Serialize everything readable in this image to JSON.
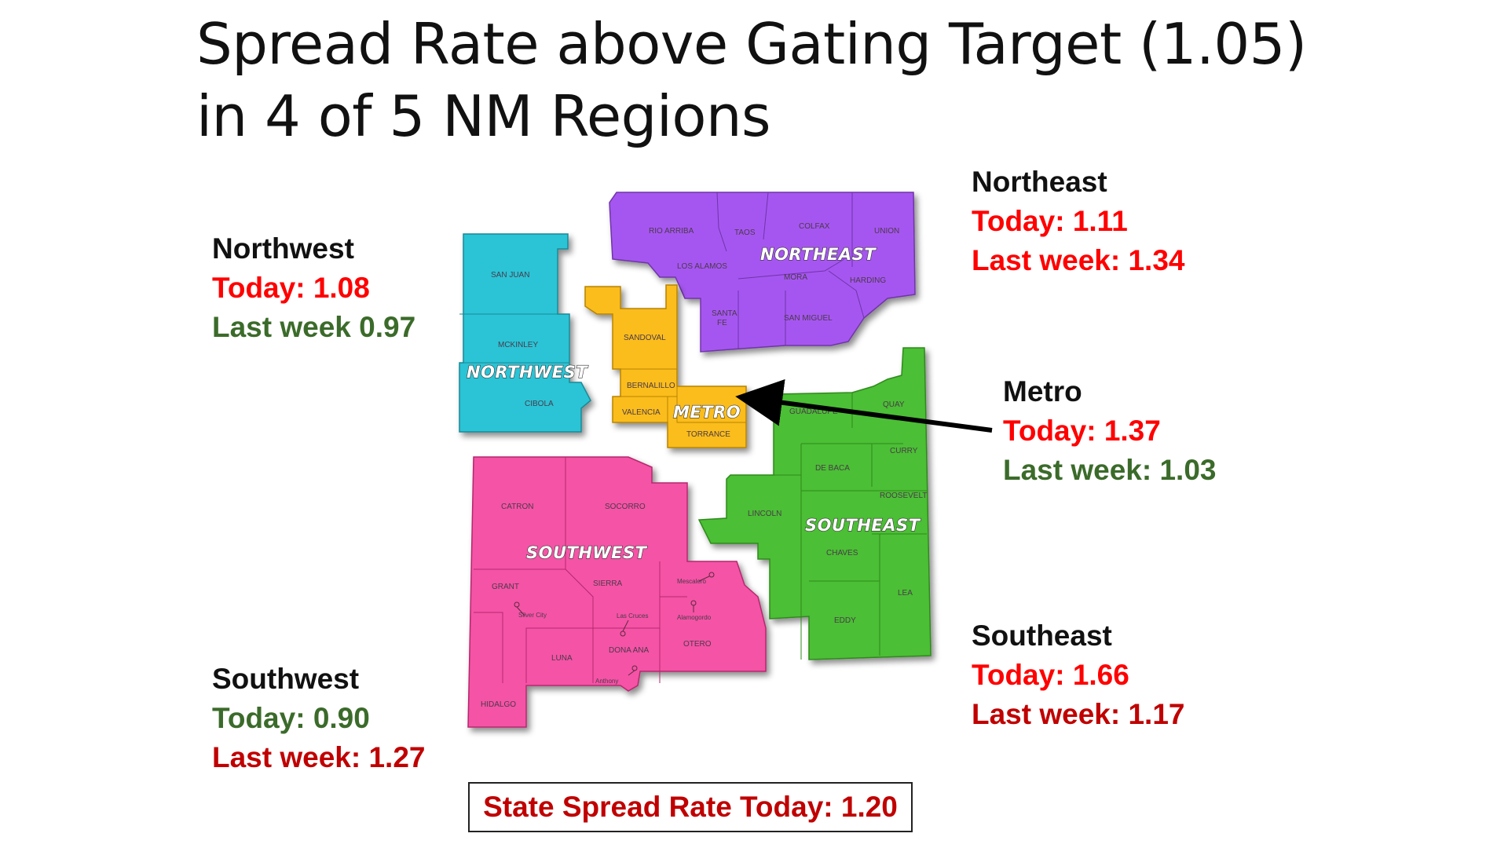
{
  "title_line1": "Spread Rate above Gating Target (1.05)",
  "title_line2": "in 4 of 5 NM Regions",
  "regions": {
    "northwest": {
      "name": "Northwest",
      "today": "Today: 1.08",
      "last_week": "Last week 0.97",
      "today_color": "#ff0000",
      "last_week_color": "#3b6b2a",
      "map_label": "NORTHWEST",
      "fill": "#2ac4d6"
    },
    "northeast": {
      "name": "Northeast",
      "today": "Today: 1.11",
      "last_week": "Last week: 1.34",
      "today_color": "#ff0000",
      "last_week_color": "#ff0000",
      "map_label": "NORTHEAST",
      "fill": "#a657f0"
    },
    "metro": {
      "name": "Metro",
      "today": "Today: 1.37",
      "last_week": "Last week: 1.03",
      "today_color": "#ff0000",
      "last_week_color": "#3b6b2a",
      "map_label": "METRO",
      "fill": "#fbbd1a"
    },
    "southeast": {
      "name": "Southeast",
      "today": "Today: 1.66",
      "last_week": "Last week: 1.17",
      "today_color": "#ff0000",
      "last_week_color": "#c00000",
      "map_label": "SOUTHEAST",
      "fill": "#4cbf34"
    },
    "southwest": {
      "name": "Southwest",
      "today": "Today: 0.90",
      "last_week": "Last week: 1.27",
      "today_color": "#3b6b2a",
      "last_week_color": "#c00000",
      "map_label": "SOUTHWEST",
      "fill": "#f552a6"
    }
  },
  "counties": {
    "san_juan": "SAN JUAN",
    "mckinley": "MCKINLEY",
    "cibola": "CIBOLA",
    "rio_arriba": "RIO ARRIBA",
    "taos": "TAOS",
    "colfax": "COLFAX",
    "union": "UNION",
    "los_alamos": "LOS ALAMOS",
    "mora": "MORA",
    "harding": "HARDING",
    "santa_fe_1": "SANTA",
    "santa_fe_2": "FE",
    "san_miguel": "SAN MIGUEL",
    "sandoval": "SANDOVAL",
    "bernalillo": "BERNALILLO",
    "valencia": "VALENCIA",
    "torrance": "TORRANCE",
    "guadalupe": "GUADALUPE",
    "quay": "QUAY",
    "curry": "CURRY",
    "de_baca": "DE BACA",
    "roosevelt": "ROOSEVELT",
    "lincoln": "LINCOLN",
    "chaves": "CHAVES",
    "lea": "LEA",
    "eddy": "EDDY",
    "catron": "CATRON",
    "socorro": "SOCORRO",
    "grant": "GRANT",
    "sierra": "SIERRA",
    "hidalgo": "HIDALGO",
    "luna": "LUNA",
    "dona_ana": "DONA ANA",
    "otero": "OTERO"
  },
  "cities": {
    "silver_city": "Silver City",
    "las_cruces": "Las Cruces",
    "anthony": "Anthony",
    "mescalero": "Mescalero",
    "alamogordo": "Alamogordo"
  },
  "state_rate": "State Spread Rate Today: 1.20"
}
